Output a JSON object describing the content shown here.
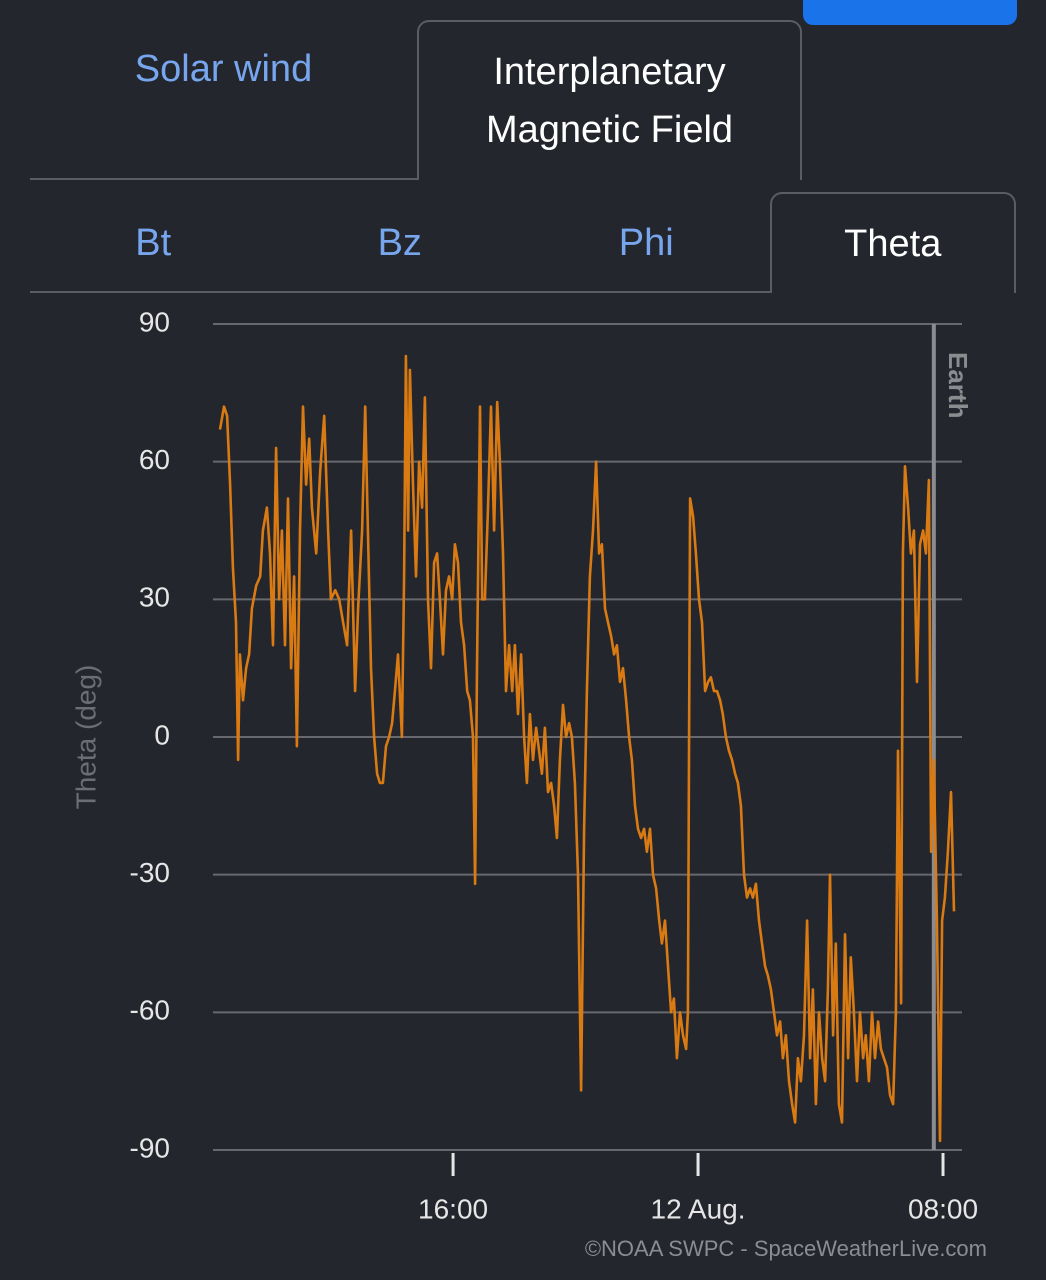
{
  "tabs": {
    "main": [
      {
        "label": "Solar wind",
        "active": false
      },
      {
        "label": "Interplanetary Magnetic Field",
        "active": true
      }
    ],
    "sub": [
      {
        "label": "Bt",
        "active": false
      },
      {
        "label": "Bz",
        "active": false
      },
      {
        "label": "Phi",
        "active": false
      },
      {
        "label": "Theta",
        "active": true
      }
    ]
  },
  "chart_data": {
    "type": "line",
    "y_label": "Theta (deg)",
    "credit": "©NOAA SWPC - SpaceWeatherLive.com",
    "xlim": [
      8.16,
      32.62
    ],
    "ylim": [
      -90,
      90
    ],
    "xticks": [
      {
        "value": 16,
        "label": "16:00"
      },
      {
        "value": 24,
        "label": "12 Aug."
      },
      {
        "value": 32,
        "label": "08:00"
      }
    ],
    "yticks": [
      90,
      60,
      30,
      0,
      -30,
      -60,
      -90
    ],
    "grid": true,
    "annotations": [
      {
        "text": "Earth",
        "x": 31.7
      }
    ],
    "x": [
      8.39,
      8.52,
      8.62,
      8.72,
      8.81,
      8.91,
      8.98,
      9.04,
      9.14,
      9.24,
      9.34,
      9.43,
      9.57,
      9.7,
      9.79,
      9.92,
      10.02,
      10.12,
      10.22,
      10.32,
      10.41,
      10.51,
      10.61,
      10.71,
      10.81,
      10.9,
      11.0,
      11.1,
      11.2,
      11.3,
      11.39,
      11.53,
      11.66,
      11.79,
      11.92,
      12.01,
      12.15,
      12.28,
      12.41,
      12.54,
      12.67,
      12.8,
      12.9,
      13.03,
      13.13,
      13.22,
      13.32,
      13.42,
      13.52,
      13.61,
      13.71,
      13.81,
      13.91,
      14.01,
      14.1,
      14.2,
      14.33,
      14.4,
      14.46,
      14.53,
      14.59,
      14.69,
      14.79,
      14.89,
      14.99,
      15.08,
      15.18,
      15.28,
      15.38,
      15.48,
      15.57,
      15.67,
      15.77,
      15.87,
      15.97,
      16.06,
      16.16,
      16.26,
      16.36,
      16.46,
      16.55,
      16.65,
      16.72,
      16.78,
      16.88,
      16.95,
      17.04,
      17.14,
      17.24,
      17.34,
      17.44,
      17.53,
      17.63,
      17.73,
      17.83,
      17.93,
      18.02,
      18.12,
      18.22,
      18.32,
      18.41,
      18.51,
      18.61,
      18.71,
      18.81,
      18.9,
      19.0,
      19.1,
      19.2,
      19.3,
      19.39,
      19.49,
      19.59,
      19.69,
      19.79,
      19.88,
      19.98,
      20.08,
      20.18,
      20.28,
      20.37,
      20.47,
      20.57,
      20.67,
      20.77,
      20.86,
      20.96,
      21.06,
      21.16,
      21.26,
      21.35,
      21.45,
      21.55,
      21.65,
      21.75,
      21.84,
      21.94,
      22.04,
      22.14,
      22.24,
      22.33,
      22.43,
      22.53,
      22.63,
      22.73,
      22.82,
      22.92,
      23.02,
      23.12,
      23.21,
      23.31,
      23.41,
      23.51,
      23.61,
      23.67,
      23.74,
      23.84,
      23.93,
      24.03,
      24.13,
      24.23,
      24.33,
      24.42,
      24.52,
      24.62,
      24.72,
      24.81,
      24.91,
      25.01,
      25.11,
      25.21,
      25.3,
      25.4,
      25.5,
      25.6,
      25.7,
      25.79,
      25.89,
      25.99,
      26.09,
      26.19,
      26.28,
      26.38,
      26.48,
      26.58,
      26.68,
      26.77,
      26.87,
      26.97,
      27.07,
      27.17,
      27.26,
      27.36,
      27.46,
      27.56,
      27.66,
      27.75,
      27.85,
      27.95,
      28.05,
      28.15,
      28.24,
      28.31,
      28.41,
      28.5,
      28.6,
      28.7,
      28.8,
      28.9,
      28.99,
      29.09,
      29.19,
      29.29,
      29.39,
      29.48,
      29.58,
      29.68,
      29.78,
      29.88,
      29.97,
      30.07,
      30.17,
      30.27,
      30.37,
      30.46,
      30.53,
      30.63,
      30.69,
      30.76,
      30.86,
      30.95,
      31.05,
      31.15,
      31.25,
      31.35,
      31.44,
      31.54,
      31.61,
      31.7,
      31.8,
      31.9,
      31.97,
      32.06,
      32.16,
      32.26,
      32.36
    ],
    "series": [
      {
        "name": "Theta",
        "color": "#d97a12",
        "values": [
          67,
          72,
          70,
          55,
          37,
          25,
          -5,
          18,
          8,
          15,
          18,
          28,
          33,
          35,
          45,
          50,
          40,
          20,
          63,
          30,
          45,
          20,
          52,
          15,
          35,
          -2,
          45,
          72,
          55,
          65,
          50,
          40,
          58,
          70,
          45,
          30,
          32,
          30,
          25,
          20,
          45,
          10,
          28,
          45,
          72,
          45,
          15,
          0,
          -8,
          -10,
          -10,
          -2,
          0,
          3,
          10,
          18,
          0,
          35,
          83,
          45,
          80,
          55,
          35,
          60,
          50,
          74,
          30,
          15,
          38,
          40,
          30,
          18,
          32,
          35,
          30,
          42,
          38,
          25,
          20,
          10,
          8,
          0,
          -32,
          15,
          72,
          30,
          30,
          50,
          72,
          45,
          73,
          60,
          40,
          10,
          20,
          10,
          20,
          5,
          18,
          0,
          -10,
          5,
          -5,
          2,
          -3,
          -8,
          2,
          -12,
          -10,
          -15,
          -22,
          -5,
          7,
          0,
          3,
          0,
          -10,
          -30,
          -77,
          -20,
          10,
          35,
          45,
          60,
          40,
          42,
          28,
          25,
          22,
          18,
          20,
          12,
          15,
          8,
          0,
          -5,
          -15,
          -20,
          -22,
          -20,
          -25,
          -20,
          -30,
          -33,
          -40,
          -45,
          -40,
          -50,
          -60,
          -57,
          -70,
          -60,
          -65,
          -68,
          -60,
          52,
          48,
          40,
          30,
          25,
          10,
          12,
          13,
          10,
          10,
          8,
          5,
          0,
          -3,
          -5,
          -8,
          -10,
          -15,
          -30,
          -35,
          -33,
          -35,
          -32,
          -40,
          -45,
          -50,
          -52,
          -55,
          -60,
          -65,
          -62,
          -70,
          -65,
          -75,
          -80,
          -84,
          -70,
          -75,
          -65,
          -40,
          -70,
          -55,
          -80,
          -60,
          -70,
          -75,
          -55,
          -30,
          -65,
          -45,
          -80,
          -84,
          -43,
          -70,
          -48,
          -60,
          -75,
          -60,
          -70,
          -65,
          -75,
          -60,
          -70,
          -62,
          -68,
          -70,
          -72,
          -78,
          -80,
          -60,
          -3,
          -58,
          40,
          59,
          50,
          40,
          45,
          12,
          42,
          45,
          40,
          56,
          -25,
          -5,
          -40,
          -88,
          -40,
          -35,
          -25,
          -12,
          -38
        ]
      }
    ]
  }
}
